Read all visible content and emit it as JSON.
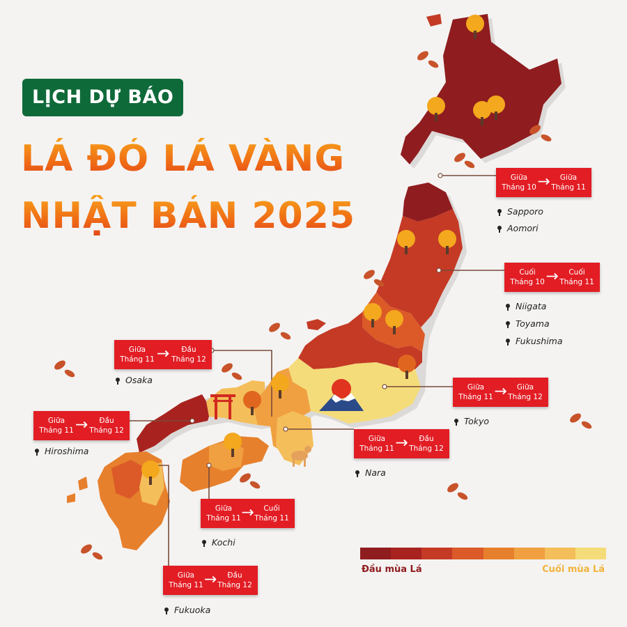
{
  "header": {
    "badge": "LỊCH DỰ BÁO",
    "title_line1": "LÁ ĐỎ LÁ VÀNG",
    "title_line2": "NHẬT BẢN 2025"
  },
  "colors": {
    "badge_bg": "#0f6a39",
    "label_red": "#e21d24",
    "region_dark_red": "#8f1c1f",
    "region_red": "#b72a22",
    "region_orange_red": "#d9502a",
    "region_orange": "#e77b2b",
    "region_light_orange": "#f2a444",
    "region_yellow": "#f5d47a"
  },
  "forecasts": [
    {
      "from": [
        "Giữa",
        "Tháng 10"
      ],
      "to": [
        "Giữa",
        "Tháng 11"
      ],
      "cities": [
        "Sapporo",
        "Aomori"
      ]
    },
    {
      "from": [
        "Cuối",
        "Tháng 10"
      ],
      "to": [
        "Cuối",
        "Tháng 11"
      ],
      "cities": [
        "Niigata",
        "Toyama",
        "Fukushima"
      ]
    },
    {
      "from": [
        "Giữa",
        "Tháng 11"
      ],
      "to": [
        "Đầu",
        "Tháng 12"
      ],
      "cities": [
        "Osaka"
      ]
    },
    {
      "from": [
        "Giữa",
        "Tháng 11"
      ],
      "to": [
        "Giữa",
        "Tháng 12"
      ],
      "cities": [
        "Tokyo"
      ]
    },
    {
      "from": [
        "Giữa",
        "Tháng 11"
      ],
      "to": [
        "Đầu",
        "Tháng 12"
      ],
      "cities": [
        "Hiroshima"
      ]
    },
    {
      "from": [
        "Giữa",
        "Tháng 11"
      ],
      "to": [
        "Đầu",
        "Tháng 12"
      ],
      "cities": [
        "Nara"
      ]
    },
    {
      "from": [
        "Giữa",
        "Tháng 11"
      ],
      "to": [
        "Cuối",
        "Tháng 11"
      ],
      "cities": [
        "Kochi"
      ]
    },
    {
      "from": [
        "Giữa",
        "Tháng 11"
      ],
      "to": [
        "Đầu",
        "Tháng 12"
      ],
      "cities": [
        "Fukuoka"
      ]
    }
  ],
  "legend": {
    "start_label": "Đầu mùa Lá",
    "end_label": "Cuối mùa Lá",
    "scale": [
      "#8f1c1f",
      "#a8231f",
      "#c43a25",
      "#db5a28",
      "#e7802c",
      "#f0a040",
      "#f4be5a",
      "#f5dc7a"
    ]
  },
  "icons": [
    "autumn-tree-icon",
    "falling-leaf-icon",
    "torii-gate-icon",
    "mount-fuji-icon",
    "deer-icon",
    "map-pin-icon",
    "arrow-right-icon"
  ]
}
